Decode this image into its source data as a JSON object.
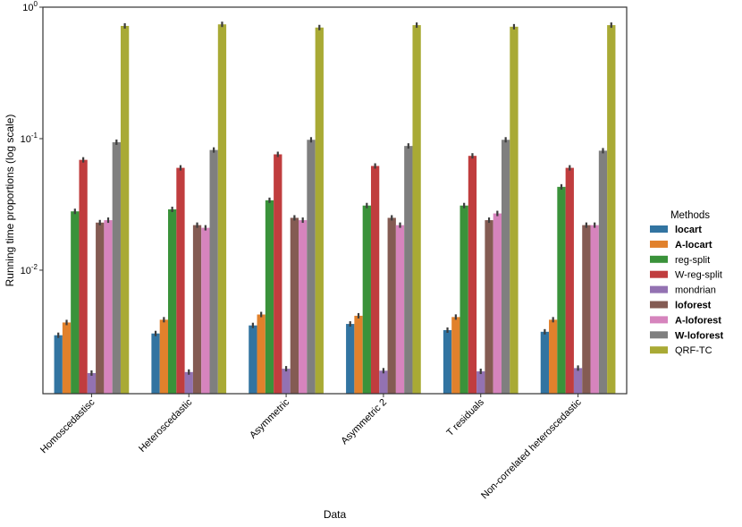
{
  "chart_data": {
    "type": "bar",
    "xlabel": "Data",
    "ylabel": "Running time proportions (log scale)",
    "yscale": "log",
    "ylim": [
      0.00115,
      1.0
    ],
    "yticks": [
      {
        "value": 1,
        "base": "10",
        "exp": "0"
      },
      {
        "value": 0.1,
        "base": "10",
        "exp": "-1"
      },
      {
        "value": 0.01,
        "base": "10",
        "exp": "-2"
      }
    ],
    "grid": false,
    "legend_placement": "right",
    "legend_title": "Methods",
    "categories": [
      "Homoscedastisc",
      "Heteroscedastic",
      "Asymmetric",
      "Asymmetric 2",
      "T residuals",
      "Non-correlated heteroscedastic"
    ],
    "series": [
      {
        "name": "locart",
        "bold": true,
        "color": "#3274a1",
        "values": [
          0.0032,
          0.0033,
          0.0038,
          0.0039,
          0.0035,
          0.0034
        ]
      },
      {
        "name": "A-locart",
        "bold": true,
        "color": "#e1812c",
        "values": [
          0.004,
          0.0042,
          0.0046,
          0.0045,
          0.0044,
          0.0042
        ]
      },
      {
        "name": "reg-split",
        "bold": false,
        "color": "#3a923a",
        "values": [
          0.028,
          0.029,
          0.034,
          0.031,
          0.031,
          0.043
        ]
      },
      {
        "name": "W-reg-split",
        "bold": false,
        "color": "#c03d3e",
        "values": [
          0.069,
          0.06,
          0.076,
          0.062,
          0.074,
          0.06
        ]
      },
      {
        "name": "mondrian",
        "bold": false,
        "color": "#9372b2",
        "values": [
          0.00165,
          0.00168,
          0.00178,
          0.00172,
          0.0017,
          0.0018
        ]
      },
      {
        "name": "loforest",
        "bold": true,
        "color": "#845b53",
        "values": [
          0.023,
          0.022,
          0.025,
          0.025,
          0.024,
          0.022
        ]
      },
      {
        "name": "A-loforest",
        "bold": true,
        "color": "#d684bd",
        "values": [
          0.024,
          0.021,
          0.024,
          0.022,
          0.027,
          0.022
        ]
      },
      {
        "name": "W-loforest",
        "bold": true,
        "color": "#7f7f7f",
        "values": [
          0.094,
          0.082,
          0.098,
          0.088,
          0.098,
          0.081
        ]
      },
      {
        "name": "QRF-TC",
        "bold": false,
        "color": "#a9aa35",
        "values": [
          0.72,
          0.74,
          0.7,
          0.73,
          0.71,
          0.73
        ]
      }
    ]
  }
}
